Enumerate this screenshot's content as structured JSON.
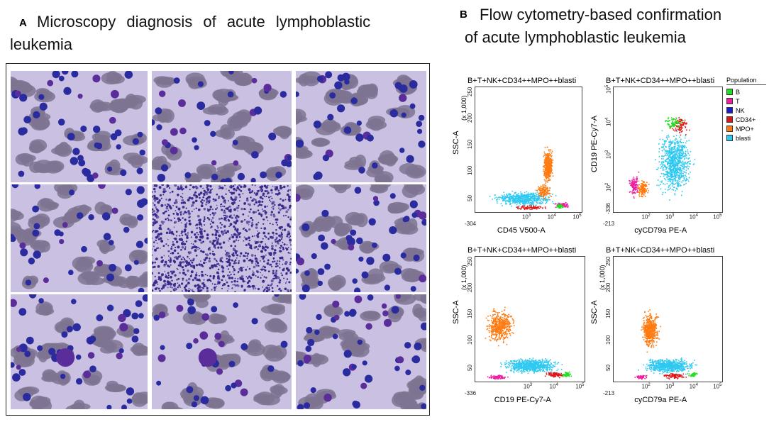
{
  "panel_a": {
    "letter": "A",
    "title_line1": "Microscopy diagnosis of acute lymphoblastic",
    "title_line2": "leukemia"
  },
  "panel_b": {
    "letter": "B",
    "title_line1": "Flow cytometry-based confirmation",
    "title_line2": "of acute lymphoblastic leukemia"
  },
  "legend": {
    "header": "Population",
    "items": [
      {
        "label": "B",
        "color": "#22dd22"
      },
      {
        "label": "T",
        "color": "#ee1ea0"
      },
      {
        "label": "NK",
        "color": "#1a1ad0"
      },
      {
        "label": "CD34+",
        "color": "#e01515"
      },
      {
        "label": "MPO+",
        "color": "#ff7a10"
      },
      {
        "label": "blasti",
        "color": "#2ec8f0"
      }
    ]
  },
  "plots": [
    {
      "title": "B+T+NK+CD34++MPO++blasti",
      "xlabel": "CD45 V500-A",
      "ylabel": "SSC-A",
      "scale": "(x 1,000)",
      "xmin": "-304",
      "yticks": [
        "50",
        "100",
        "150",
        "200",
        "250"
      ],
      "xexp": [
        "3",
        "4",
        "5"
      ]
    },
    {
      "title": "B+T+NK+CD34++MPO++blasti",
      "xlabel": "cyCD79a PE-A",
      "ylabel": "CD19 PE-Cy7-A",
      "scale": "",
      "xmin": "-213",
      "ymin": "-336",
      "yexp": [
        "2",
        "3",
        "4",
        "5"
      ],
      "xexp": [
        "2",
        "3",
        "4",
        "5"
      ]
    },
    {
      "title": "B+T+NK+CD34++MPO++blasti",
      "xlabel": "CD19 PE-Cy7-A",
      "ylabel": "SSC-A",
      "scale": "(x 1,000)",
      "xmin": "-336",
      "yticks": [
        "50",
        "100",
        "150",
        "200",
        "250"
      ],
      "xexp": [
        "3",
        "4",
        "5"
      ]
    },
    {
      "title": "B+T+NK+CD34++MPO++blasti",
      "xlabel": "cyCD79a PE-A",
      "ylabel": "SSC-A",
      "scale": "(x 1,000)",
      "xmin": "-213",
      "yticks": [
        "50",
        "100",
        "150",
        "200",
        "250"
      ],
      "xexp": [
        "2",
        "3",
        "4",
        "5"
      ]
    }
  ],
  "colors": {
    "smear_bg": "#c9c0e2",
    "rbc": "#7e7492",
    "nucleus": "#2b2ba0",
    "nucleus_purple": "#5a2d9a"
  }
}
